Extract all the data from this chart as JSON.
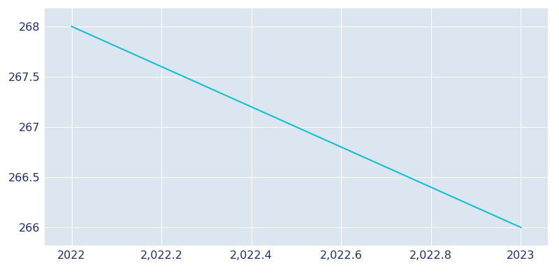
{
  "x": [
    2022,
    2023
  ],
  "y": [
    268,
    266
  ],
  "line_color": "#17becf",
  "line_width": 1.5,
  "figure_facecolor": "#ffffff",
  "axes_facecolor": "#dce6f0",
  "grid_color": "#ffffff",
  "tick_color": "#1f3068",
  "xlim": [
    2021.94,
    2023.06
  ],
  "ylim": [
    265.82,
    268.18
  ],
  "yticks": [
    266,
    266.5,
    267,
    267.5,
    268
  ],
  "xticks": [
    2022,
    2022.2,
    2022.4,
    2022.6,
    2022.8,
    2023
  ],
  "tick_labelsize": 11.5
}
